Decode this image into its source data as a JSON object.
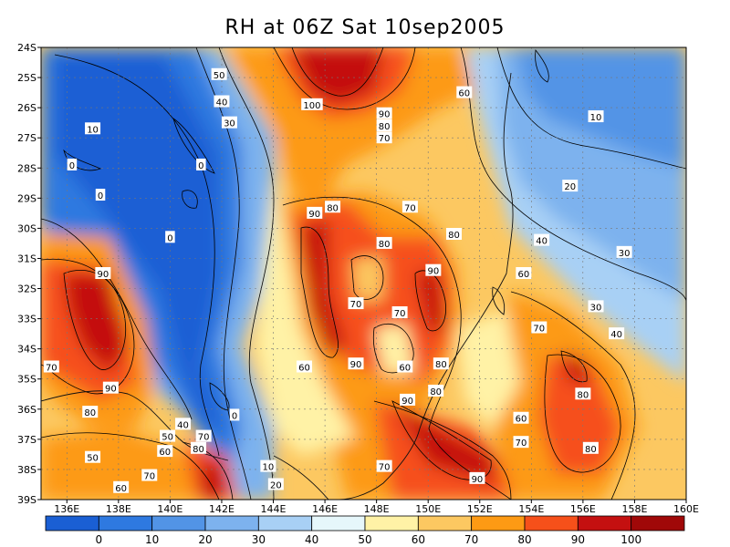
{
  "title": "RH at 06Z Sat 10sep2005",
  "chart_data": {
    "type": "heatmap",
    "variable": "RH",
    "title": "RH at 06Z Sat 10sep2005",
    "x_ticks": [
      "136E",
      "138E",
      "140E",
      "142E",
      "144E",
      "146E",
      "148E",
      "150E",
      "152E",
      "154E",
      "156E",
      "158E",
      "160E"
    ],
    "y_ticks": [
      "24S",
      "25S",
      "26S",
      "27S",
      "28S",
      "29S",
      "30S",
      "31S",
      "32S",
      "33S",
      "34S",
      "35S",
      "36S",
      "37S",
      "38S",
      "39S"
    ],
    "xlim": [
      135,
      160
    ],
    "ylim": [
      -39,
      -24
    ],
    "grid": true,
    "colorbar": {
      "labels": [
        "0",
        "10",
        "20",
        "30",
        "40",
        "50",
        "60",
        "70",
        "80",
        "90",
        "100"
      ],
      "colors": [
        "#1a5fd4",
        "#2e79e0",
        "#5294e6",
        "#7db2ee",
        "#a8d0f5",
        "#e6f7fb",
        "#fff2a6",
        "#fcc861",
        "#fd9a14",
        "#f6501a",
        "#c41010",
        "#a00808"
      ]
    },
    "contour_labels": [
      {
        "text": "50",
        "lon": 141.9,
        "lat": -24.9
      },
      {
        "text": "40",
        "lon": 142.0,
        "lat": -25.8
      },
      {
        "text": "30",
        "lon": 142.3,
        "lat": -26.5
      },
      {
        "text": "10",
        "lon": 137.0,
        "lat": -26.7
      },
      {
        "text": "0",
        "lon": 136.2,
        "lat": -27.9
      },
      {
        "text": "0",
        "lon": 141.2,
        "lat": -27.9
      },
      {
        "text": "0",
        "lon": 137.3,
        "lat": -28.9
      },
      {
        "text": "0",
        "lon": 140.0,
        "lat": -30.3
      },
      {
        "text": "100",
        "lon": 145.5,
        "lat": -25.9
      },
      {
        "text": "90",
        "lon": 148.3,
        "lat": -26.2
      },
      {
        "text": "80",
        "lon": 148.3,
        "lat": -26.6
      },
      {
        "text": "70",
        "lon": 148.3,
        "lat": -27.0
      },
      {
        "text": "60",
        "lon": 151.4,
        "lat": -25.5
      },
      {
        "text": "10",
        "lon": 156.5,
        "lat": -26.3
      },
      {
        "text": "20",
        "lon": 155.5,
        "lat": -28.6
      },
      {
        "text": "90",
        "lon": 145.6,
        "lat": -29.5
      },
      {
        "text": "80",
        "lon": 146.3,
        "lat": -29.3
      },
      {
        "text": "70",
        "lon": 149.3,
        "lat": -29.3
      },
      {
        "text": "80",
        "lon": 151.0,
        "lat": -30.2
      },
      {
        "text": "80",
        "lon": 148.3,
        "lat": -30.5
      },
      {
        "text": "40",
        "lon": 154.4,
        "lat": -30.4
      },
      {
        "text": "30",
        "lon": 157.6,
        "lat": -30.8
      },
      {
        "text": "90",
        "lon": 137.4,
        "lat": -31.5
      },
      {
        "text": "90",
        "lon": 150.2,
        "lat": -31.4
      },
      {
        "text": "60",
        "lon": 153.7,
        "lat": -31.5
      },
      {
        "text": "70",
        "lon": 147.2,
        "lat": -32.5
      },
      {
        "text": "70",
        "lon": 148.9,
        "lat": -32.8
      },
      {
        "text": "30",
        "lon": 156.5,
        "lat": -32.6
      },
      {
        "text": "70",
        "lon": 154.3,
        "lat": -33.3
      },
      {
        "text": "40",
        "lon": 157.3,
        "lat": -33.5
      },
      {
        "text": "60",
        "lon": 145.2,
        "lat": -34.6
      },
      {
        "text": "90",
        "lon": 147.2,
        "lat": -34.5
      },
      {
        "text": "60",
        "lon": 149.1,
        "lat": -34.6
      },
      {
        "text": "80",
        "lon": 150.5,
        "lat": -34.5
      },
      {
        "text": "70",
        "lon": 135.4,
        "lat": -34.6
      },
      {
        "text": "90",
        "lon": 137.7,
        "lat": -35.3
      },
      {
        "text": "80",
        "lon": 150.3,
        "lat": -35.4
      },
      {
        "text": "90",
        "lon": 149.2,
        "lat": -35.7
      },
      {
        "text": "80",
        "lon": 156.0,
        "lat": -35.5
      },
      {
        "text": "80",
        "lon": 136.9,
        "lat": -36.1
      },
      {
        "text": "0",
        "lon": 142.5,
        "lat": -36.2
      },
      {
        "text": "40",
        "lon": 140.5,
        "lat": -36.5
      },
      {
        "text": "60",
        "lon": 153.6,
        "lat": -36.3
      },
      {
        "text": "50",
        "lon": 139.9,
        "lat": -36.9
      },
      {
        "text": "70",
        "lon": 141.3,
        "lat": -36.9
      },
      {
        "text": "60",
        "lon": 139.8,
        "lat": -37.4
      },
      {
        "text": "80",
        "lon": 141.1,
        "lat": -37.3
      },
      {
        "text": "70",
        "lon": 153.6,
        "lat": -37.1
      },
      {
        "text": "80",
        "lon": 156.3,
        "lat": -37.3
      },
      {
        "text": "50",
        "lon": 137.0,
        "lat": -37.6
      },
      {
        "text": "10",
        "lon": 143.8,
        "lat": -37.9
      },
      {
        "text": "70",
        "lon": 148.3,
        "lat": -37.9
      },
      {
        "text": "70",
        "lon": 139.2,
        "lat": -38.2
      },
      {
        "text": "20",
        "lon": 144.1,
        "lat": -38.5
      },
      {
        "text": "90",
        "lon": 151.9,
        "lat": -38.3
      },
      {
        "text": "60",
        "lon": 138.1,
        "lat": -38.6
      }
    ]
  }
}
